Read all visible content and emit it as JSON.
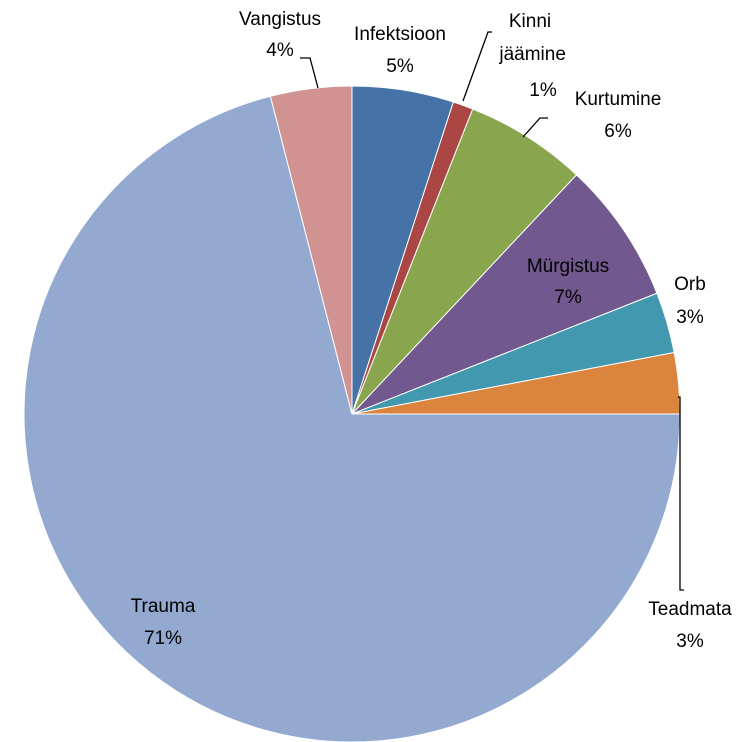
{
  "chart_data": {
    "type": "pie",
    "categories": [
      "Infektsioon",
      "Kinni jäämine",
      "Kurtumine",
      "Mürgistus",
      "Orb",
      "Teadmata",
      "Trauma",
      "Vangistus"
    ],
    "values": [
      5,
      1,
      6,
      7,
      3,
      3,
      71,
      4
    ],
    "value_labels": [
      "5%",
      "1%",
      "6%",
      "7%",
      "3%",
      "3%",
      "71%",
      "4%"
    ],
    "colors": [
      "#4572a7",
      "#aa4643",
      "#89a54e",
      "#71588f",
      "#4198af",
      "#db843d",
      "#93a9cf",
      "#d19392"
    ]
  }
}
